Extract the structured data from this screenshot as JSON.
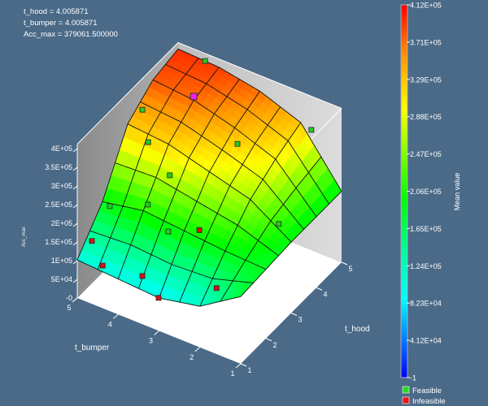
{
  "info": {
    "line1": "t_hood = 4.005871",
    "line2": "t_bumper = 4.005871",
    "line3": "Acc_max = 379061.500000"
  },
  "chart_data": {
    "type": "surface3d",
    "xlabel": "t_bumper",
    "ylabel": "t_hood",
    "zlabel": "Acc_max",
    "x_ticks": [
      "1",
      "2",
      "3",
      "4",
      "5"
    ],
    "y_ticks": [
      "1",
      "2",
      "3",
      "4",
      "5"
    ],
    "z_ticks": [
      "-0",
      "5E+04",
      "1E+05",
      "1.5E+05",
      "2E+05",
      "2.5E+05",
      "3E+05",
      "3.5E+05",
      "4E+05"
    ],
    "z_tick_values": [
      0,
      50000,
      100000,
      150000,
      200000,
      250000,
      300000,
      350000,
      400000
    ],
    "xlim": [
      1,
      5
    ],
    "ylim": [
      1,
      5
    ],
    "zlim": [
      0,
      412000
    ],
    "surface_grid": {
      "t_bumper": [
        1,
        2,
        3,
        4,
        5
      ],
      "t_hood": [
        1,
        2,
        3,
        4,
        5
      ],
      "z_rows_by_hood": [
        [
          180000,
          110000,
          88000,
          95000,
          102000
        ],
        [
          185000,
          190000,
          200000,
          210000,
          190000
        ],
        [
          190000,
          260000,
          290000,
          320000,
          330000
        ],
        [
          190000,
          300000,
          340000,
          370000,
          380000
        ],
        [
          190000,
          330000,
          370000,
          390000,
          395000
        ]
      ]
    },
    "points": [
      {
        "t_bumper": 4.34,
        "t_hood": 5.0,
        "z": 392000,
        "status": "Feasible"
      },
      {
        "t_bumper": 4.64,
        "t_hood": 3.0,
        "z": 384000,
        "status": "Feasible"
      },
      {
        "t_bumper": 4.19,
        "t_hood": 2.5,
        "z": 351000,
        "status": "Feasible"
      },
      {
        "t_bumper": 2.93,
        "t_hood": 4.0,
        "z": 300000,
        "status": "Feasible"
      },
      {
        "t_bumper": 1.74,
        "t_hood": 5.0,
        "z": 322000,
        "status": "Feasible"
      },
      {
        "t_bumper": 3.97,
        "t_hood": 3.0,
        "z": 238000,
        "status": "Feasible"
      },
      {
        "t_bumper": 3.89,
        "t_hood": 2.0,
        "z": 231000,
        "status": "Feasible"
      },
      {
        "t_bumper": 4.82,
        "t_hood": 2.0,
        "z": 186000,
        "status": "Feasible"
      },
      {
        "t_bumper": 1.92,
        "t_hood": 4.0,
        "z": 130000,
        "status": "Feasible"
      },
      {
        "t_bumper": 3.39,
        "t_hood": 2.0,
        "z": 181000,
        "status": "Feasible"
      },
      {
        "t_bumper": 4.95,
        "t_hood": 1.5,
        "z": 121000,
        "status": "Infeasible"
      },
      {
        "t_bumper": 4.38,
        "t_hood": 1.0,
        "z": 114000,
        "status": "Infeasible"
      },
      {
        "t_bumper": 3.01,
        "t_hood": 1.0,
        "z": 88000,
        "status": "Infeasible"
      },
      {
        "t_bumper": 1.9,
        "t_hood": 1.5,
        "z": 129000,
        "status": "Infeasible"
      },
      {
        "t_bumper": 3.53,
        "t_hood": 1.2,
        "z": 110000,
        "status": "Infeasible"
      },
      {
        "t_bumper": 2.63,
        "t_hood": 2.0,
        "z": 218000,
        "status": "Infeasible"
      },
      {
        "t_bumper": 4.005871,
        "t_hood": 4.005871,
        "z": 379061.5,
        "status": "Selected"
      }
    ],
    "colorbar": {
      "title": "Mean value",
      "min": -1,
      "max": 412000,
      "ticks": [
        "-1",
        "4.12E+04",
        "8.23E+04",
        "1.24E+05",
        "1.65E+05",
        "2.06E+05",
        "2.47E+05",
        "2.88E+05",
        "3.29E+05",
        "3.71E+05",
        "4.12E+05"
      ]
    },
    "legend": [
      {
        "label": "Feasible",
        "color": "#22dd22"
      },
      {
        "label": "Infeasible",
        "color": "#ee1111"
      }
    ],
    "colors": {
      "selected": "#ee22ee",
      "floor": "#ffffff",
      "wall_left": "#9a9a9a",
      "wall_back": "#cfcfcf"
    }
  }
}
